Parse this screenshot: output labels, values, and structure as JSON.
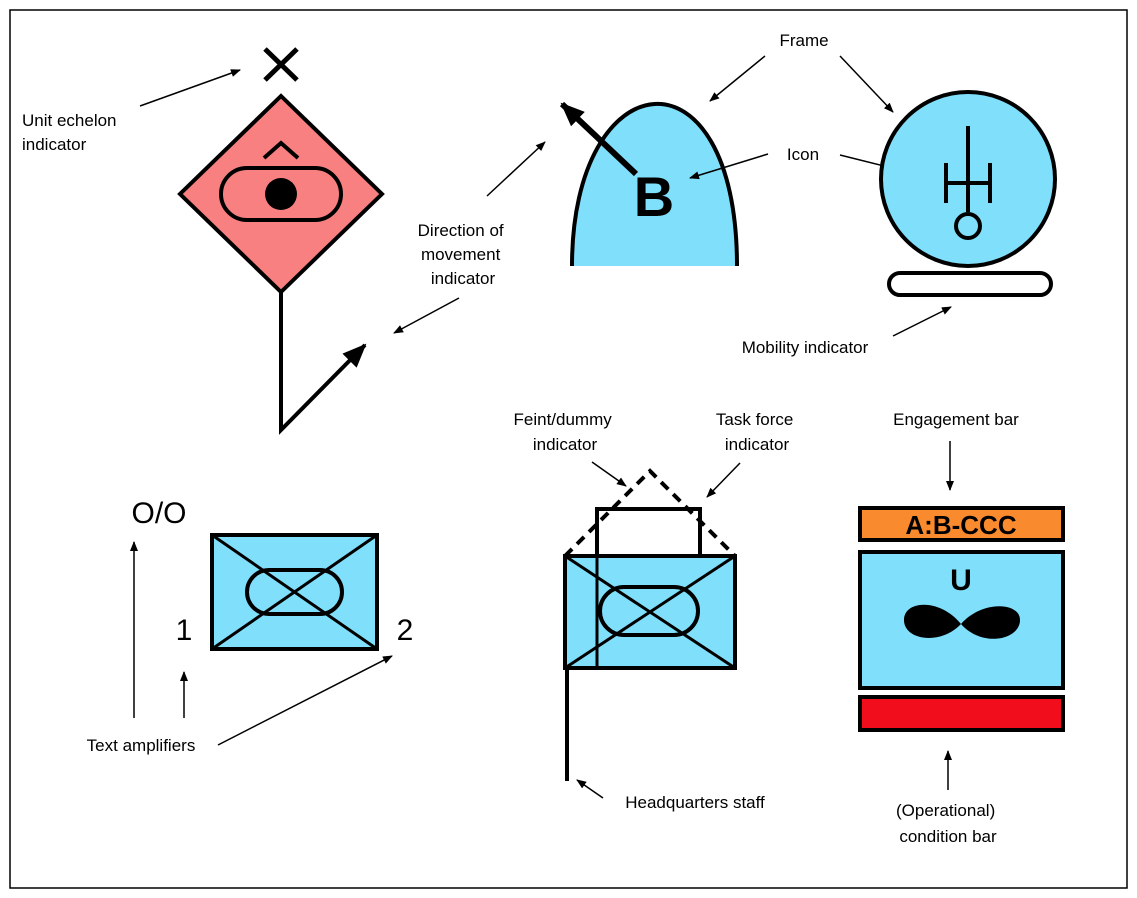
{
  "labels": {
    "unit_echelon": [
      "Unit echelon",
      "indicator"
    ],
    "direction_of_movement": [
      "Direction of",
      "movement",
      "indicator"
    ],
    "frame": "Frame",
    "icon": "Icon",
    "mobility": "Mobility indicator",
    "feint_dummy": [
      "Feint/dummy",
      "indicator"
    ],
    "task_force": [
      "Task force",
      "indicator"
    ],
    "engagement_bar": "Engagement bar",
    "text_amplifiers": "Text amplifiers",
    "headquarters_staff": "Headquarters staff",
    "condition_bar": [
      "(Operational)",
      "condition bar"
    ]
  },
  "symbols": {
    "echelon_mark": "✕",
    "caret_mark": "^",
    "air_letter": "B",
    "amplifier_top": "O/O",
    "amplifier_1": "1",
    "amplifier_2": "2",
    "engagement_text": "A:B-CCC",
    "unit_letter": "U"
  },
  "colors": {
    "hostile_fill": "#f98080",
    "friendly_fill": "#80dffa",
    "engagement_fill": "#f98a2e",
    "condition_fill": "#f20d1c",
    "stroke": "#000000"
  }
}
